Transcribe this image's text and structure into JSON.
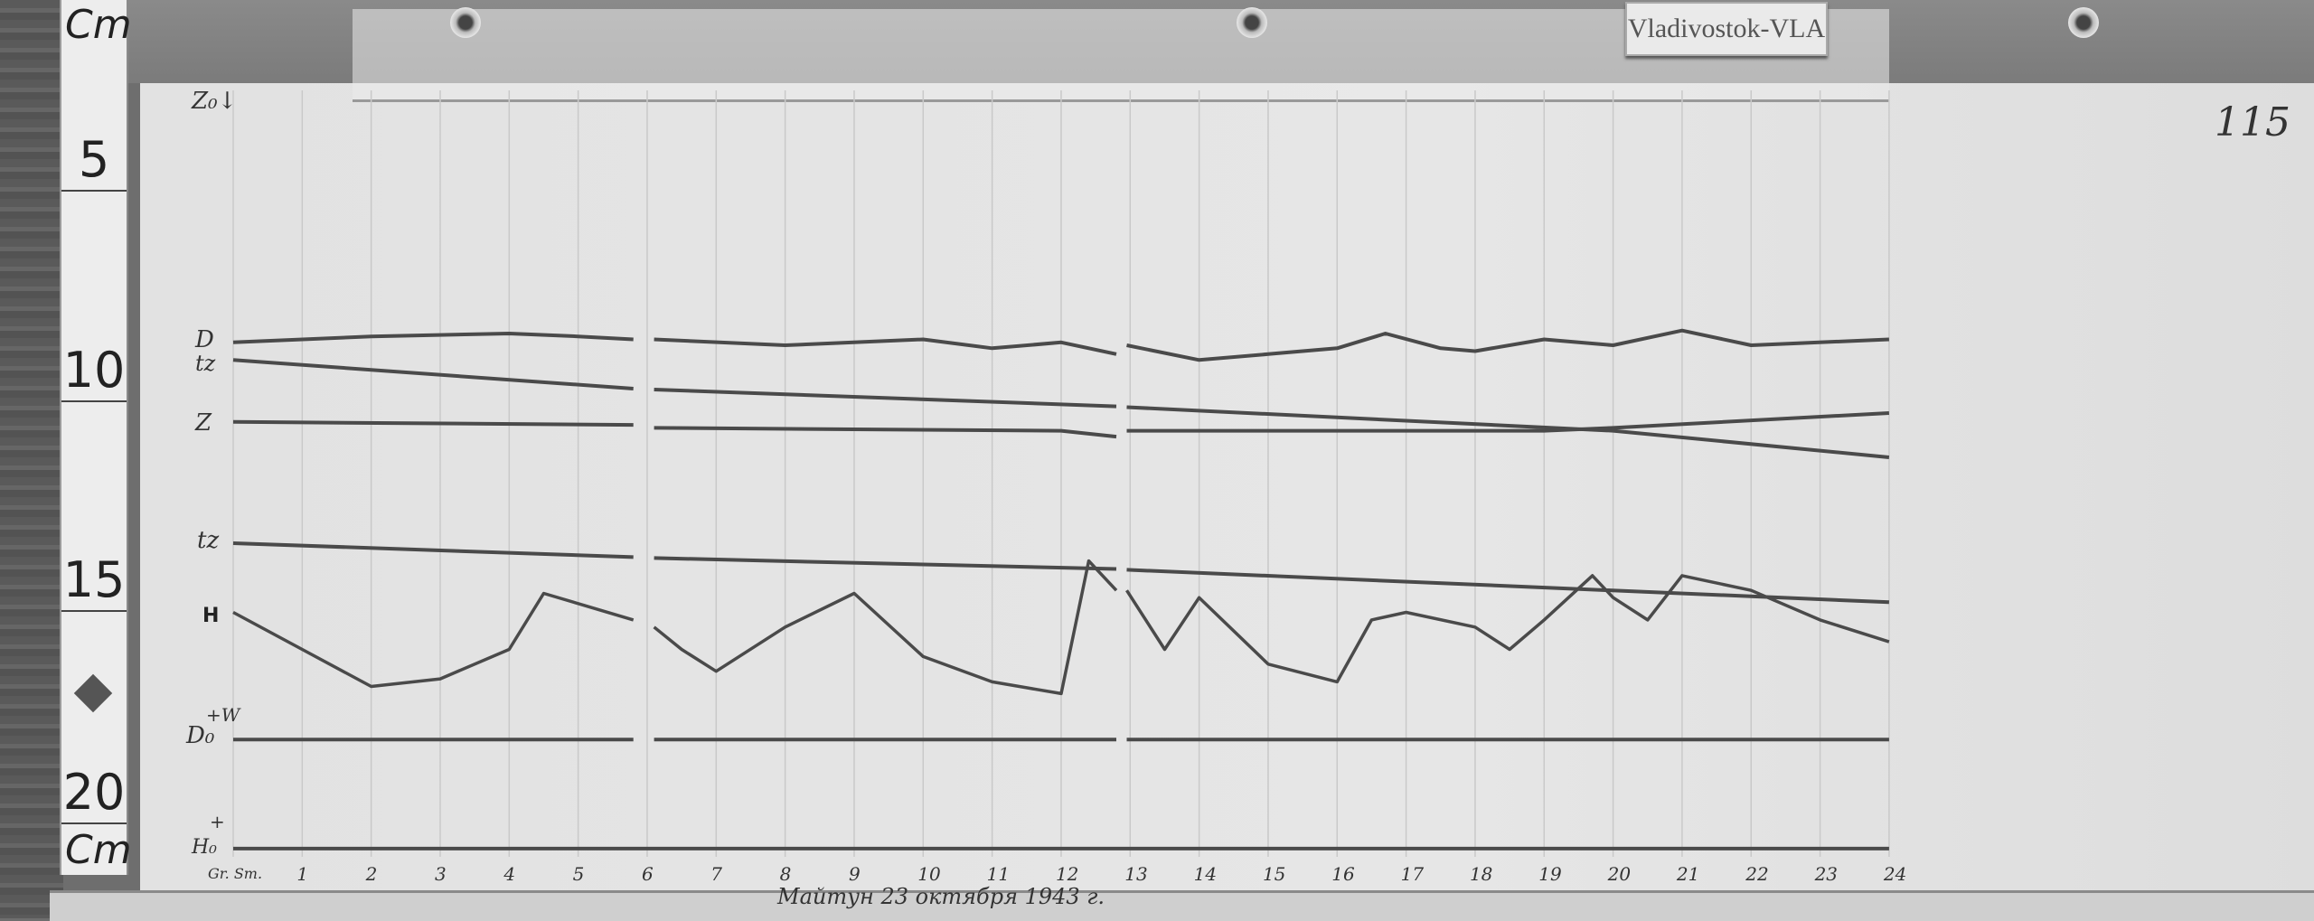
{
  "station_label": "Vladivostok-VLA",
  "sheet_number": "115",
  "caption": "Майтун 23 октября 1943 г.",
  "ruler": {
    "unit_top": "Cm",
    "unit_bottom": "Cm",
    "marks": [
      "5",
      "10",
      "15",
      "20"
    ]
  },
  "trace_labels": {
    "z0": "Z₀↓",
    "d": "D",
    "tz1": "tz",
    "z": "Z",
    "tz2": "tz",
    "h": "H",
    "d0": "D₀",
    "d0_dir": "+W",
    "h0": "H₀",
    "h0_dir": "+"
  },
  "chart_data": {
    "type": "line",
    "title": "",
    "xlabel": "Gr. Sm.",
    "ylabel": "Cm",
    "x_ticks": [
      "1",
      "2",
      "3",
      "4",
      "5",
      "6",
      "7",
      "8",
      "9",
      "10",
      "11",
      "12",
      "13",
      "14",
      "15",
      "16",
      "17",
      "18",
      "19",
      "20",
      "21",
      "22",
      "23",
      "24"
    ],
    "xlim": [
      0,
      24
    ],
    "ylim_cm_on_ruler": [
      20.9,
      0
    ],
    "grid": "vertical hourly lines",
    "trace_color": "#4a4a4a",
    "series": [
      {
        "name": "D",
        "points": [
          [
            0,
            8.6
          ],
          [
            2,
            8.46
          ],
          [
            4,
            8.39
          ],
          [
            5,
            8.46
          ],
          [
            5.8,
            8.53
          ],
          null,
          [
            6.1,
            8.53
          ],
          [
            8,
            8.67
          ],
          [
            10,
            8.53
          ],
          [
            11,
            8.74
          ],
          [
            12,
            8.6
          ],
          [
            12.8,
            8.88
          ],
          null,
          [
            12.95,
            8.67
          ],
          [
            14,
            9.02
          ],
          [
            15,
            8.88
          ],
          [
            16,
            8.74
          ],
          [
            16.7,
            8.39
          ],
          [
            17.5,
            8.74
          ],
          [
            18,
            8.81
          ],
          [
            19,
            8.53
          ],
          [
            20,
            8.67
          ],
          [
            21,
            8.32
          ],
          [
            22,
            8.67
          ],
          [
            24,
            8.53
          ]
        ]
      },
      {
        "name": "tz",
        "points": [
          [
            0,
            9.02
          ],
          [
            5.8,
            9.7
          ],
          null,
          [
            6.1,
            9.72
          ],
          [
            12.8,
            10.12
          ],
          null,
          [
            12.95,
            10.14
          ],
          [
            20,
            10.7
          ],
          [
            24,
            11.33
          ]
        ]
      },
      {
        "name": "Z",
        "points": [
          [
            0,
            10.49
          ],
          [
            5.8,
            10.56
          ],
          null,
          [
            6.1,
            10.63
          ],
          [
            12,
            10.7
          ],
          [
            12.8,
            10.84
          ],
          null,
          [
            12.95,
            10.7
          ],
          [
            19,
            10.7
          ],
          [
            20,
            10.63
          ],
          [
            24,
            10.28
          ]
        ]
      },
      {
        "name": "tz",
        "points": [
          [
            0,
            13.37
          ],
          [
            5.8,
            13.7
          ],
          null,
          [
            6.1,
            13.72
          ],
          [
            12.8,
            13.98
          ],
          null,
          [
            12.95,
            14.0
          ],
          [
            24,
            14.77
          ]
        ]
      },
      {
        "name": "H",
        "points": [
          [
            0,
            15.01
          ],
          [
            1,
            15.89
          ],
          [
            2,
            16.77
          ],
          [
            3,
            16.59
          ],
          [
            4,
            15.89
          ],
          [
            4.5,
            14.56
          ],
          [
            5.8,
            15.19
          ],
          null,
          [
            6.1,
            15.36
          ],
          [
            6.5,
            15.89
          ],
          [
            7,
            16.41
          ],
          [
            8,
            15.36
          ],
          [
            9,
            14.56
          ],
          [
            10,
            16.06
          ],
          [
            11,
            16.66
          ],
          [
            12,
            16.94
          ],
          [
            12.4,
            13.79
          ],
          [
            12.8,
            14.49
          ],
          null,
          [
            12.95,
            14.49
          ],
          [
            13.5,
            15.89
          ],
          [
            14,
            14.66
          ],
          [
            15,
            16.24
          ],
          [
            16,
            16.66
          ],
          [
            16.5,
            15.19
          ],
          [
            17,
            15.01
          ],
          [
            18,
            15.36
          ],
          [
            18.5,
            15.89
          ],
          [
            19,
            15.19
          ],
          [
            19.7,
            14.14
          ],
          [
            20,
            14.66
          ],
          [
            20.5,
            15.19
          ],
          [
            21,
            14.14
          ],
          [
            22,
            14.49
          ],
          [
            23,
            15.19
          ],
          [
            24,
            15.71
          ]
        ]
      },
      {
        "name": "D₀",
        "points": [
          [
            0,
            18.03
          ],
          [
            5.8,
            18.03
          ],
          null,
          [
            6.1,
            18.03
          ],
          [
            12.8,
            18.03
          ],
          null,
          [
            12.95,
            18.03
          ],
          [
            24,
            18.03
          ]
        ]
      },
      {
        "name": "H₀",
        "points": [
          [
            0,
            20.62
          ],
          [
            24,
            20.62
          ]
        ]
      }
    ]
  }
}
